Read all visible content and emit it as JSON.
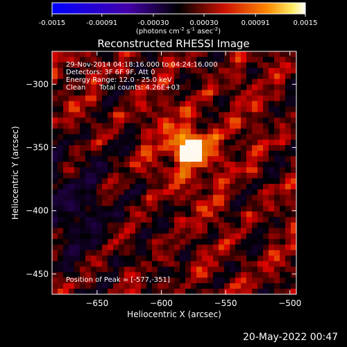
{
  "chart_data": {
    "type": "heatmap",
    "title": "Reconstructed RHESSI Image",
    "xlabel": "Heliocentric X (arcsec)",
    "ylabel": "Heliocentric Y (arcsec)",
    "xlim": [
      -685,
      -495
    ],
    "ylim": [
      -466,
      -274
    ],
    "x_ticks": [
      -650,
      -600,
      -550,
      -500
    ],
    "y_ticks": [
      -300,
      -350,
      -400,
      -450
    ],
    "colorbar": {
      "range": [
        -0.0015,
        0.0015
      ],
      "ticks": [
        "-0.0015",
        "-0.00091",
        "-0.00030",
        "0.00030",
        "0.00091",
        "0.0015"
      ],
      "unit_label": "(photons cm",
      "unit_parts": [
        "-2",
        " s",
        "-1",
        " asec",
        "-2",
        ")"
      ]
    },
    "annotations": {
      "time_range": "29-Nov-2014 04:18:16.000 to 04:24:16.000",
      "detectors": "Detectors: 3F 6F 9F, Att 0",
      "energy_range": "Energy Range: 12.0 - 25.0 keV",
      "algorithm": "Clean",
      "total_counts": "Total counts: 4.26E+03",
      "peak": "Position of Peak = [-577,-351]"
    },
    "peak": {
      "x": -577,
      "y": -351
    },
    "colors": {
      "low": "#0000ff",
      "zero": "#000000",
      "mid": "#cc1100",
      "high": "#ffffff"
    }
  },
  "timestamp": "20-May-2022 00:47"
}
